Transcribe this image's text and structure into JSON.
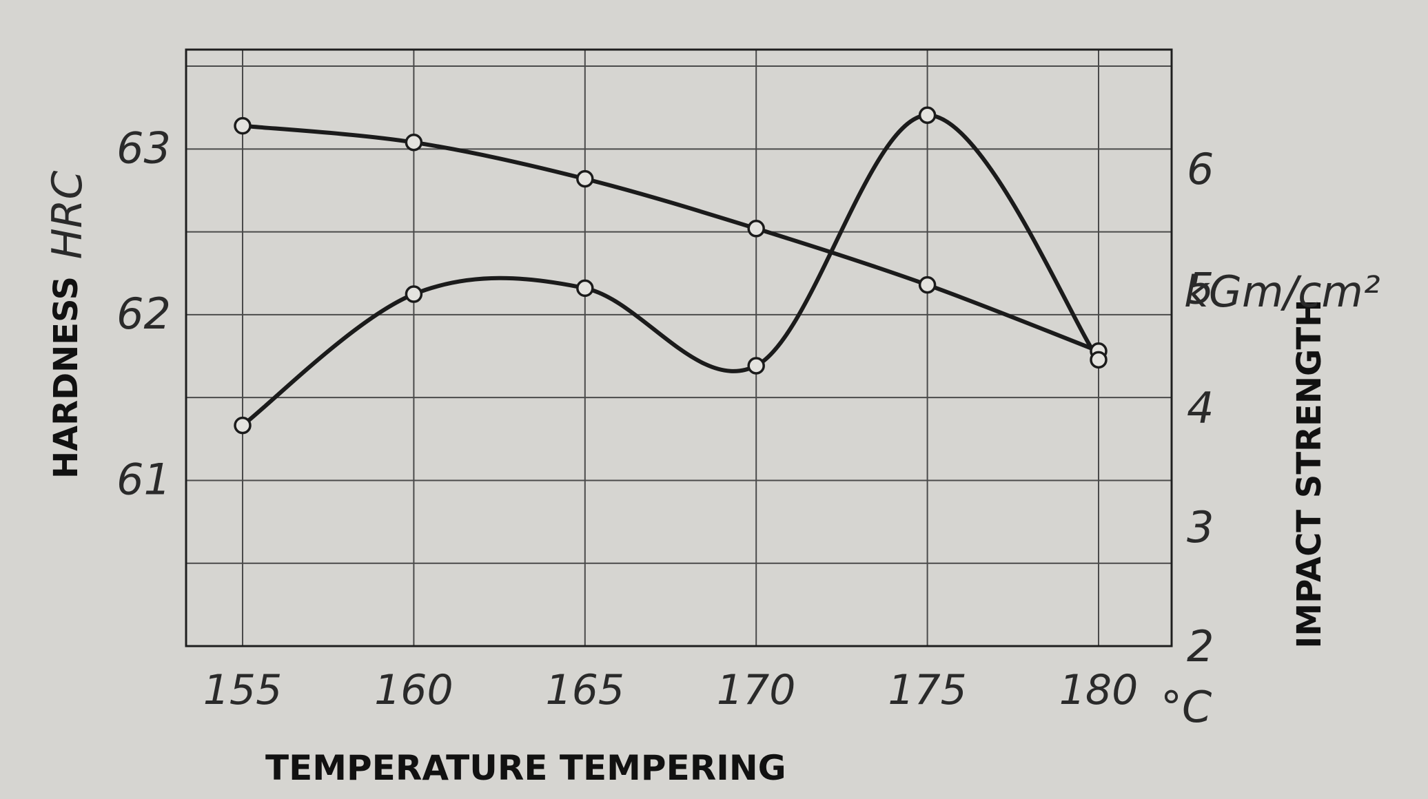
{
  "chart_data": {
    "type": "line",
    "xlabel": "TEMPERATURE TEMPERING",
    "x_unit": "°C",
    "x_ticks": [
      "155",
      "160",
      "165",
      "170",
      "175",
      "180"
    ],
    "y_left": {
      "label": "HARDNESS",
      "unit": "HRC",
      "ticks": [
        "61",
        "62",
        "63"
      ],
      "range": [
        60,
        63.6
      ]
    },
    "y_right": {
      "label": "IMPACT STRENGTH",
      "unit": "kGm/cm²",
      "ticks": [
        "2",
        "3",
        "4",
        "5",
        "6"
      ],
      "range": [
        2,
        7
      ]
    },
    "grid": true,
    "series": [
      {
        "axis": "left",
        "x": [
          155,
          160,
          165,
          170,
          175,
          180
        ],
        "y": [
          63.14,
          63.04,
          62.82,
          62.52,
          62.18,
          61.78
        ]
      },
      {
        "axis": "right",
        "x": [
          155,
          160,
          165,
          170,
          175,
          180
        ],
        "y": [
          3.85,
          4.95,
          5.0,
          4.35,
          6.45,
          4.4
        ]
      }
    ]
  }
}
